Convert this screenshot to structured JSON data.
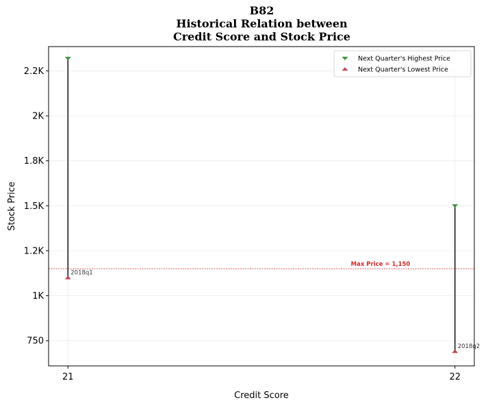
{
  "chart_data": {
    "type": "scatter",
    "title": [
      "B82",
      "Historical Relation between",
      "Credit Score and Stock Price"
    ],
    "xlabel": "Credit Score",
    "ylabel": "Stock Price",
    "x_ticks": [
      21,
      22
    ],
    "x_tick_labels": [
      "21",
      "22"
    ],
    "xlim": [
      20.95,
      22.05
    ],
    "y_ticks": [
      750,
      1000,
      1250,
      1500,
      1750,
      2000,
      2250
    ],
    "y_tick_labels": [
      "750",
      "1K",
      "1.2K",
      "1.5K",
      "1.8K",
      "2K",
      "2.2K"
    ],
    "ylim": [
      610,
      2385
    ],
    "grid": true,
    "legend_position": "upper right",
    "series": [
      {
        "name": "Next Quarter's Highest Price",
        "marker": "triangle-down",
        "color": "#2e8b2e",
        "x": [
          21,
          22
        ],
        "values": [
          2320,
          1500
        ]
      },
      {
        "name": "Next Quarter's Lowest Price",
        "marker": "triangle-up",
        "color": "#c0353f",
        "x": [
          21,
          22
        ],
        "values": [
          1100,
          690
        ]
      }
    ],
    "point_labels": [
      {
        "x": 21,
        "y": 1100,
        "text": "2018q1"
      },
      {
        "x": 22,
        "y": 690,
        "text": "2018q2"
      }
    ],
    "reference_line": {
      "value": 1150,
      "label": "Max Price = 1,150",
      "color": "#d62728"
    }
  }
}
